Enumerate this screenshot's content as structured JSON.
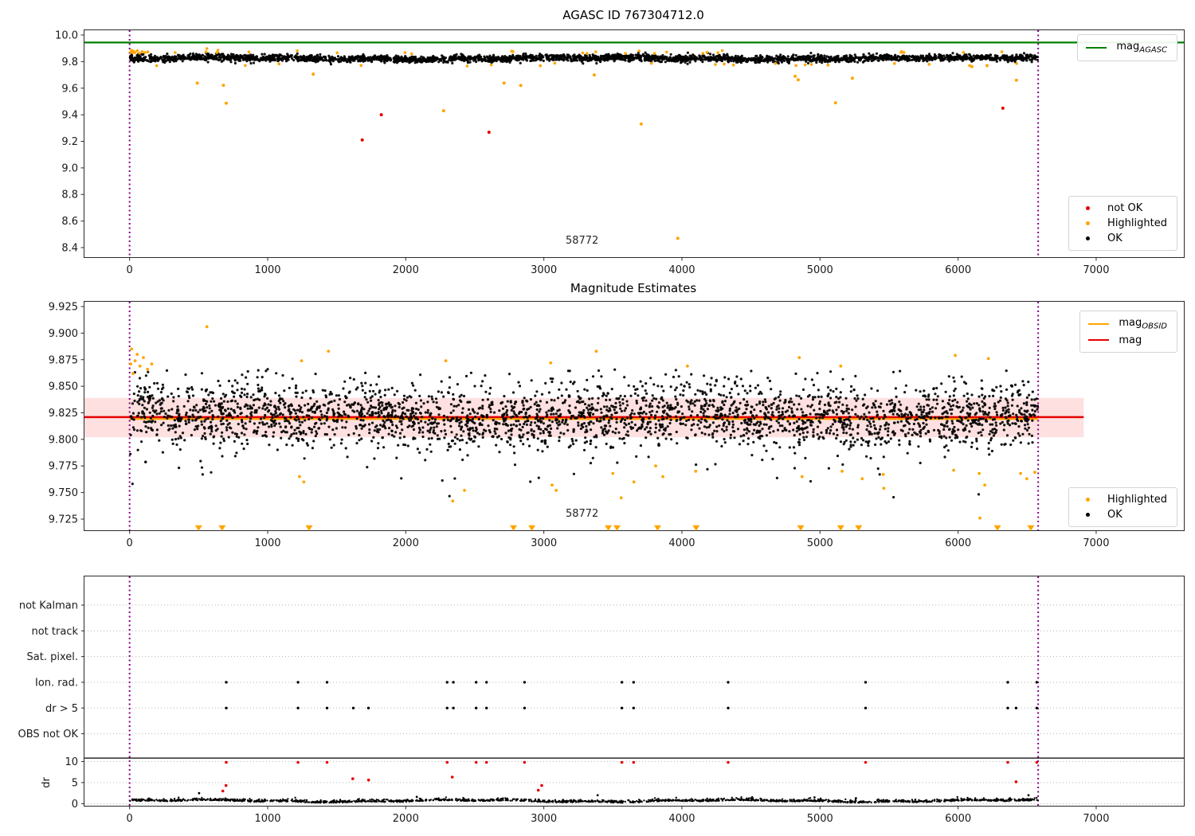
{
  "colors": {
    "ok": "#000000",
    "highlighted": "#ffa500",
    "not_ok": "#e50000",
    "mag_agasc_line": "#008000",
    "mag_line": "#e50000",
    "mag_obsid_line": "#ffa500",
    "interval_line": "#800080",
    "uncertainty_band": "rgba(255,0,0,0.12)",
    "grid": "#b5b5b5",
    "tick_text": "#1a1a1a"
  },
  "chart_data": [
    {
      "type": "scatter",
      "title": "AGASC ID 767304712.0",
      "xlim": [
        -327,
        7635
      ],
      "ylim": [
        8.328,
        10.036
      ],
      "xticks": [
        0,
        1000,
        2000,
        3000,
        4000,
        5000,
        6000,
        7000
      ],
      "xtick_labels": [
        "0",
        "1000",
        "2000",
        "3000",
        "4000",
        "5000",
        "6000",
        "7000"
      ],
      "ytick_labels": [
        "8.4",
        "8.6",
        "8.8",
        "9.0",
        "9.2",
        "9.4",
        "9.6",
        "9.8",
        "10.0"
      ],
      "yticks": [
        8.4,
        8.6,
        8.8,
        9.0,
        9.2,
        9.4,
        9.6,
        9.8,
        10.0
      ],
      "legend_top": [
        {
          "label": "mag",
          "sub": "AGASC",
          "marker": "line",
          "color": "#008000"
        }
      ],
      "legend_bottom": [
        {
          "label": "not OK",
          "marker": "dot",
          "color": "#e50000"
        },
        {
          "label": "Highlighted",
          "marker": "dot",
          "color": "#ffa500"
        },
        {
          "label": "OK",
          "marker": "dot",
          "color": "#000000"
        }
      ],
      "series": [
        {
          "name": "mag-agasc-line",
          "kind": "hline",
          "y": 9.944,
          "x": [
            -327,
            7635
          ],
          "color": "#008000",
          "width": 2.2
        },
        {
          "name": "obsid-interval-lines",
          "kind": "vlines",
          "x": [
            0,
            6580
          ],
          "color": "#800080",
          "width": 2,
          "dash": "2 3.5"
        },
        {
          "name": "ok-points",
          "kind": "cloud",
          "seed": 7,
          "n": 3000,
          "x_range": [
            4,
            6578
          ],
          "mean": 9.824,
          "sigma": 0.0125,
          "p_wide": 0,
          "sigma_wide": 0,
          "wiggle": [
            [
              430,
              0.006,
              0
            ],
            [
              97,
              0.004,
              2
            ]
          ],
          "clamp": [
            9.776,
            9.872
          ],
          "color": "#000000",
          "r": 1.6,
          "opacity": 0.92
        },
        {
          "name": "highlighted-band-points",
          "kind": "edgecloud",
          "seed": 11,
          "n": 46,
          "x_range": [
            30,
            6570
          ],
          "mean": 9.824,
          "offset": 0.047,
          "jitter": 0.012,
          "clamp": [
            9.757,
            9.888
          ],
          "color": "#ffa500",
          "r": 1.8
        },
        {
          "name": "highlighted-start-cluster",
          "kind": "points",
          "color": "#ffa500",
          "r": 1.8,
          "points": [
            [
              8,
              9.872
            ],
            [
              14,
              9.885
            ],
            [
              22,
              9.866
            ],
            [
              30,
              9.878
            ],
            [
              40,
              9.868
            ],
            [
              55,
              9.882
            ],
            [
              72,
              9.864
            ],
            [
              92,
              9.875
            ],
            [
              112,
              9.868
            ],
            [
              132,
              9.873
            ],
            [
              330,
              9.868
            ],
            [
              560,
              9.898
            ],
            [
              640,
              9.885
            ]
          ]
        },
        {
          "name": "highlighted-outliers",
          "kind": "points",
          "color": "#ffa500",
          "r": 2,
          "points": [
            [
              490,
              9.638
            ],
            [
              680,
              9.622
            ],
            [
              700,
              9.487
            ],
            [
              1330,
              9.706
            ],
            [
              2274,
              9.43
            ],
            [
              2712,
              9.638
            ],
            [
              2833,
              9.62
            ],
            [
              3365,
              9.7
            ],
            [
              3705,
              9.33
            ],
            [
              3970,
              8.47
            ],
            [
              4820,
              9.69
            ],
            [
              4842,
              9.663
            ],
            [
              5112,
              9.49
            ],
            [
              5234,
              9.675
            ],
            [
              6100,
              9.763
            ],
            [
              6210,
              9.77
            ],
            [
              6422,
              9.66
            ]
          ]
        },
        {
          "name": "not-ok-points",
          "kind": "points",
          "color": "#e50000",
          "r": 2,
          "points": [
            [
              1685,
              9.21
            ],
            [
              1823,
              9.4
            ],
            [
              2603,
              9.268
            ],
            [
              6324,
              9.449
            ]
          ]
        },
        {
          "name": "obsid-label",
          "kind": "text",
          "x": 3277,
          "y": 8.43,
          "text": "58772",
          "color": "#262626"
        }
      ]
    },
    {
      "type": "scatter",
      "title": "Magnitude Estimates",
      "xlim": [
        -327,
        7635
      ],
      "ylim": [
        9.7145,
        9.9295
      ],
      "xticks": [
        0,
        1000,
        2000,
        3000,
        4000,
        5000,
        6000,
        7000
      ],
      "xtick_labels": [
        "0",
        "1000",
        "2000",
        "3000",
        "4000",
        "5000",
        "6000",
        "7000"
      ],
      "yticks": [
        9.725,
        9.75,
        9.775,
        9.8,
        9.825,
        9.85,
        9.875,
        9.9,
        9.925
      ],
      "ytick_labels": [
        "9.725",
        "9.750",
        "9.775",
        "9.800",
        "9.825",
        "9.850",
        "9.875",
        "9.900",
        "9.925"
      ],
      "legend_top": [
        {
          "label": "mag",
          "sub": "OBSID",
          "marker": "line",
          "color": "#ffa500"
        },
        {
          "label": "mag",
          "sub": "",
          "marker": "line",
          "color": "#e50000"
        }
      ],
      "legend_bottom": [
        {
          "label": "Highlighted",
          "marker": "dot",
          "color": "#ffa500"
        },
        {
          "label": "OK",
          "marker": "dot",
          "color": "#000000"
        }
      ],
      "mag": 9.821,
      "mag_band": [
        9.802,
        9.839
      ],
      "series": [
        {
          "name": "mag-uncertainty-band",
          "kind": "band",
          "x": [
            -327,
            6910
          ],
          "y": [
            9.802,
            9.839
          ],
          "color": "rgba(255,0,0,0.12)"
        },
        {
          "name": "obsid-interval-lines",
          "kind": "vlines",
          "x": [
            0,
            6580
          ],
          "color": "#800080",
          "width": 2,
          "dash": "2 3.5"
        },
        {
          "name": "mag-obsid-line",
          "kind": "hline",
          "y": 9.8195,
          "x": [
            0,
            6580
          ],
          "color": "#ffa500",
          "width": 3
        },
        {
          "name": "mag-line",
          "kind": "hline",
          "y": 9.821,
          "x": [
            -327,
            6910
          ],
          "color": "#e50000",
          "width": 2.5
        },
        {
          "name": "ok-points",
          "kind": "cloud",
          "seed": 21,
          "n": 3000,
          "x_range": [
            4,
            6578
          ],
          "mean": 9.8225,
          "sigma": 0.0145,
          "p_wide": 0.18,
          "sigma_wide": 0.027,
          "wiggle": [
            [
              500,
              0.003,
              0
            ],
            [
              130,
              0.002,
              1
            ]
          ],
          "clamp": [
            9.727,
            9.867
          ],
          "color": "#000000",
          "r": 1.6,
          "opacity": 0.92
        },
        {
          "name": "highlighted-top-points",
          "kind": "points",
          "color": "#ffa500",
          "r": 1.9,
          "points": [
            [
              8,
              9.871
            ],
            [
              15,
              9.885
            ],
            [
              25,
              9.862
            ],
            [
              40,
              9.874
            ],
            [
              55,
              9.88
            ],
            [
              75,
              9.869
            ],
            [
              100,
              9.877
            ],
            [
              130,
              9.866
            ],
            [
              160,
              9.871
            ],
            [
              560,
              9.906
            ],
            [
              1245,
              9.874
            ],
            [
              1440,
              9.883
            ],
            [
              2290,
              9.874
            ],
            [
              3050,
              9.872
            ],
            [
              3380,
              9.883
            ],
            [
              4040,
              9.869
            ],
            [
              4850,
              9.877
            ],
            [
              5150,
              9.869
            ],
            [
              5980,
              9.879
            ],
            [
              6220,
              9.876
            ]
          ]
        },
        {
          "name": "highlighted-bottom-points",
          "kind": "points",
          "color": "#ffa500",
          "r": 1.9,
          "points": [
            [
              1230,
              9.765
            ],
            [
              1262,
              9.76
            ],
            [
              2340,
              9.742
            ],
            [
              2425,
              9.752
            ],
            [
              3060,
              9.757
            ],
            [
              3090,
              9.752
            ],
            [
              3500,
              9.768
            ],
            [
              3560,
              9.745
            ],
            [
              3652,
              9.76
            ],
            [
              3810,
              9.775
            ],
            [
              3862,
              9.765
            ],
            [
              4100,
              9.77
            ],
            [
              4870,
              9.765
            ],
            [
              5160,
              9.77
            ],
            [
              5305,
              9.763
            ],
            [
              5458,
              9.767
            ],
            [
              5462,
              9.754
            ],
            [
              5968,
              9.771
            ],
            [
              6153,
              9.768
            ],
            [
              6193,
              9.757
            ],
            [
              6158,
              9.726
            ],
            [
              6453,
              9.768
            ],
            [
              6498,
              9.763
            ],
            [
              6556,
              9.769
            ]
          ]
        },
        {
          "name": "clipped-highlighted-markers",
          "kind": "triangles",
          "y": 9.7165,
          "size": 4.5,
          "color": "#ffa500",
          "x": [
            500,
            670,
            1300,
            2780,
            2913,
            3467,
            3530,
            3824,
            4103,
            4860,
            5150,
            5280,
            6285,
            6527
          ]
        },
        {
          "name": "obsid-label",
          "kind": "text",
          "x": 3277,
          "y": 9.7272,
          "text": "58772",
          "color": "#262626"
        }
      ]
    },
    {
      "type": "scatter",
      "title": "",
      "xlim": [
        -327,
        7635
      ],
      "xticks": [
        0,
        1000,
        2000,
        3000,
        4000,
        5000,
        6000,
        7000
      ],
      "xtick_labels": [
        "0",
        "1000",
        "2000",
        "3000",
        "4000",
        "5000",
        "6000",
        "7000"
      ],
      "categories": [
        "not Kalman",
        "not track",
        "Sat. pixel.",
        "Ion. rad.",
        "dr > 5",
        "OBS not OK"
      ],
      "dr_ticks": [
        10,
        5,
        0
      ],
      "dr_tick_labels": [
        "10",
        "5",
        "0"
      ],
      "dr_label": "dr",
      "series": [
        {
          "name": "obsid-interval-lines",
          "kind": "vlines",
          "x": [
            0,
            6580
          ],
          "color": "#800080",
          "width": 2,
          "dash": "2 3.5"
        },
        {
          "name": "ion-rad-flags",
          "kind": "rowdots",
          "row": 3,
          "color": "#000000",
          "r": 1.7,
          "x": [
            700,
            1220,
            1430,
            2300,
            2345,
            2510,
            2585,
            2860,
            3565,
            3650,
            4335,
            5330,
            6360,
            6570
          ]
        },
        {
          "name": "dr5-flags",
          "kind": "rowdots",
          "row": 4,
          "color": "#000000",
          "r": 1.7,
          "x": [
            700,
            1220,
            1430,
            1620,
            1730,
            2300,
            2345,
            2510,
            2585,
            2860,
            3565,
            3650,
            4335,
            5330,
            6360,
            6420,
            6570
          ]
        },
        {
          "name": "dr-points",
          "kind": "drcloud",
          "seed": 33,
          "n": 1700,
          "x_range": [
            4,
            6578
          ],
          "mean": 0.5,
          "sigma": 0.26,
          "abs": true,
          "wiggle": [
            [
              310,
              0.2,
              0
            ],
            [
              87,
              0.1,
              1
            ]
          ],
          "clamp": [
            0.07,
            1.8
          ],
          "color": "#000000",
          "r": 1.2,
          "opacity": 0.95
        },
        {
          "name": "dr-ok-outliers",
          "kind": "drdots",
          "color": "#000000",
          "r": 1.4,
          "points": [
            [
              503,
              2.5
            ],
            [
              2080,
              1.6
            ],
            [
              3390,
              2.0
            ],
            [
              4960,
              1.5
            ],
            [
              5260,
              1.3
            ],
            [
              6510,
              2.0
            ]
          ]
        },
        {
          "name": "dr-not-ok-points",
          "kind": "drdots",
          "color": "#e50000",
          "r": 1.8,
          "points": [
            [
              700,
              9.8
            ],
            [
              1220,
              9.8
            ],
            [
              1430,
              9.8
            ],
            [
              2300,
              9.8
            ],
            [
              2510,
              9.8
            ],
            [
              2585,
              9.8
            ],
            [
              2860,
              9.8
            ],
            [
              3565,
              9.8
            ],
            [
              3650,
              9.8
            ],
            [
              4335,
              9.8
            ],
            [
              5330,
              9.8
            ],
            [
              6360,
              9.8
            ],
            [
              6570,
              9.8
            ],
            [
              698,
              4.3
            ],
            [
              675,
              3.0
            ],
            [
              1616,
              5.9
            ],
            [
              1731,
              5.6
            ],
            [
              2337,
              6.3
            ],
            [
              2985,
              4.3
            ],
            [
              2960,
              3.2
            ],
            [
              6420,
              5.2
            ]
          ]
        }
      ]
    }
  ]
}
